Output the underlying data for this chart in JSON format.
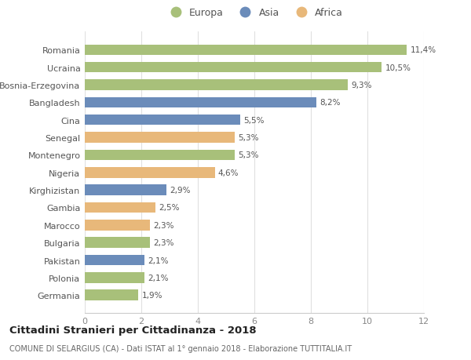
{
  "countries": [
    "Romania",
    "Ucraina",
    "Bosnia-Erzegovina",
    "Bangladesh",
    "Cina",
    "Senegal",
    "Montenegro",
    "Nigeria",
    "Kirghizistan",
    "Gambia",
    "Marocco",
    "Bulgaria",
    "Pakistan",
    "Polonia",
    "Germania"
  ],
  "values": [
    11.4,
    10.5,
    9.3,
    8.2,
    5.5,
    5.3,
    5.3,
    4.6,
    2.9,
    2.5,
    2.3,
    2.3,
    2.1,
    2.1,
    1.9
  ],
  "labels": [
    "11,4%",
    "10,5%",
    "9,3%",
    "8,2%",
    "5,5%",
    "5,3%",
    "5,3%",
    "4,6%",
    "2,9%",
    "2,5%",
    "2,3%",
    "2,3%",
    "2,1%",
    "2,1%",
    "1,9%"
  ],
  "continents": [
    "Europa",
    "Europa",
    "Europa",
    "Asia",
    "Asia",
    "Africa",
    "Europa",
    "Africa",
    "Asia",
    "Africa",
    "Africa",
    "Europa",
    "Asia",
    "Europa",
    "Europa"
  ],
  "colors": {
    "Europa": "#a8c07a",
    "Asia": "#6b8cba",
    "Africa": "#e8b87a"
  },
  "legend_labels": [
    "Europa",
    "Asia",
    "Africa"
  ],
  "xlim": [
    0,
    12
  ],
  "xticks": [
    0,
    2,
    4,
    6,
    8,
    10,
    12
  ],
  "title": "Cittadini Stranieri per Cittadinanza - 2018",
  "subtitle": "COMUNE DI SELARGIUS (CA) - Dati ISTAT al 1° gennaio 2018 - Elaborazione TUTTITALIA.IT",
  "background_color": "#ffffff",
  "bar_height": 0.6
}
